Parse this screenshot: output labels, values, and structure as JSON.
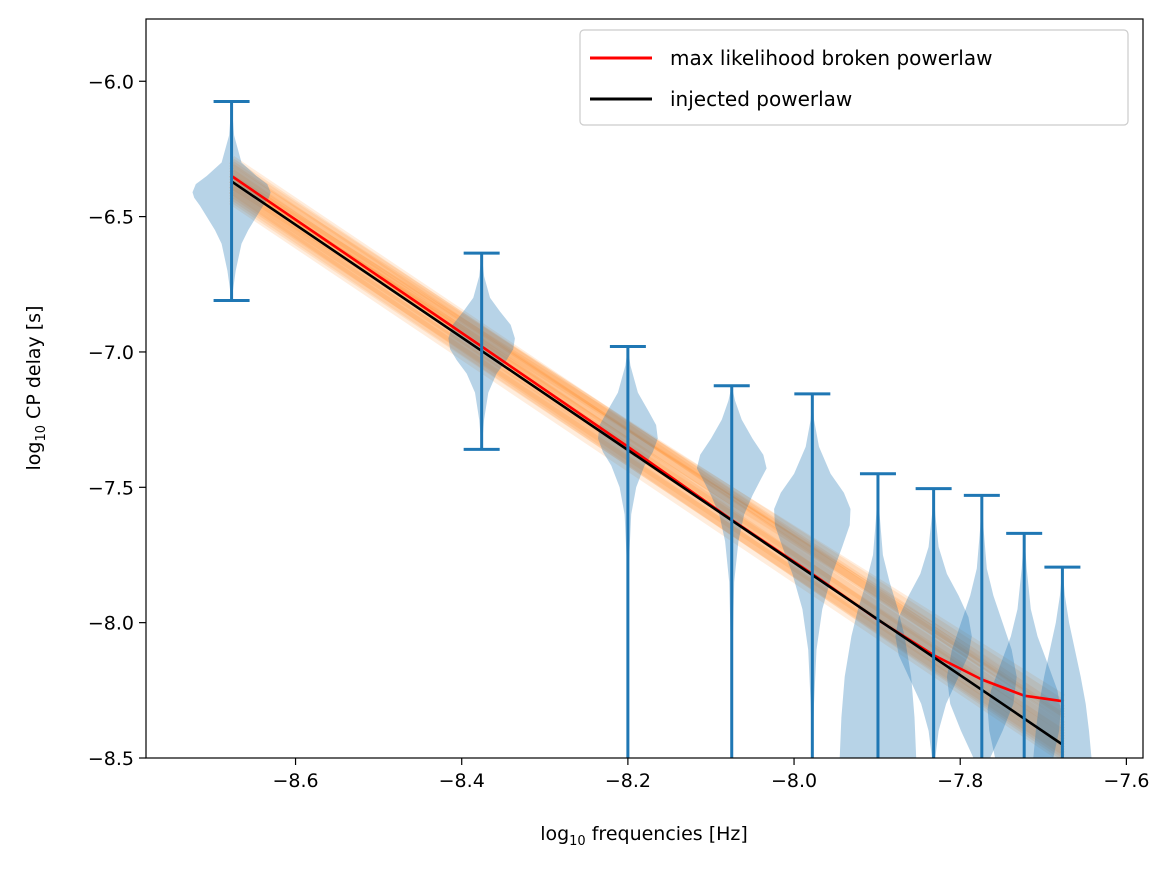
{
  "chart_data": {
    "type": "line",
    "xlabel_base": "log",
    "xlabel_sub": "10",
    "xlabel_rest": " frequencies [Hz]",
    "ylabel_base": "log",
    "ylabel_sub": "10",
    "ylabel_rest": " CP delay [s]",
    "xlim": [
      -8.78,
      -7.58
    ],
    "ylim": [
      -8.5,
      -5.77
    ],
    "x_ticks": [
      -8.6,
      -8.4,
      -8.2,
      -8.0,
      -7.8,
      -7.6
    ],
    "x_tick_labels": [
      "−8.6",
      "−8.4",
      "−8.2",
      "−8.0",
      "−7.8",
      "−7.6"
    ],
    "y_ticks": [
      -6.0,
      -6.5,
      -7.0,
      -7.5,
      -8.0,
      -8.5
    ],
    "y_tick_labels": [
      "−6.0",
      "−6.5",
      "−7.0",
      "−7.5",
      "−8.0",
      "−8.5"
    ],
    "legend_position": "top-right",
    "series": [
      {
        "name": "max likelihood broken powerlaw",
        "color": "#ff0000",
        "x": [
          -8.677,
          -8.376,
          -8.2,
          -8.075,
          -7.978,
          -7.899,
          -7.832,
          -7.774,
          -7.723,
          -7.677
        ],
        "y": [
          -6.35,
          -6.98,
          -7.35,
          -7.62,
          -7.82,
          -7.99,
          -8.12,
          -8.21,
          -8.27,
          -8.29
        ]
      },
      {
        "name": "injected powerlaw",
        "color": "#000000",
        "x": [
          -8.677,
          -7.677
        ],
        "y": [
          -6.37,
          -8.45
        ]
      }
    ],
    "violins": {
      "color": "#1f77b4",
      "items": [
        {
          "x": -8.677,
          "min": -6.81,
          "max": -6.075,
          "profile": [
            [
              -6.81,
              0.0
            ],
            [
              -6.7,
              0.005
            ],
            [
              -6.6,
              0.012
            ],
            [
              -6.55,
              0.02
            ],
            [
              -6.5,
              0.03
            ],
            [
              -6.46,
              0.038
            ],
            [
              -6.43,
              0.045
            ],
            [
              -6.41,
              0.047
            ],
            [
              -6.38,
              0.043
            ],
            [
              -6.35,
              0.03
            ],
            [
              -6.3,
              0.012
            ],
            [
              -6.2,
              0.003
            ],
            [
              -6.075,
              0.0
            ]
          ]
        },
        {
          "x": -8.376,
          "min": -7.36,
          "max": -6.635,
          "profile": [
            [
              -7.36,
              0.0
            ],
            [
              -7.25,
              0.003
            ],
            [
              -7.15,
              0.008
            ],
            [
              -7.08,
              0.018
            ],
            [
              -7.03,
              0.03
            ],
            [
              -6.99,
              0.038
            ],
            [
              -6.95,
              0.04
            ],
            [
              -6.9,
              0.035
            ],
            [
              -6.85,
              0.022
            ],
            [
              -6.8,
              0.01
            ],
            [
              -6.72,
              0.003
            ],
            [
              -6.635,
              0.0
            ]
          ]
        },
        {
          "x": -8.2,
          "min": -8.5,
          "max": -6.98,
          "profile": [
            [
              -8.5,
              0.0
            ],
            [
              -7.8,
              0.001
            ],
            [
              -7.6,
              0.004
            ],
            [
              -7.5,
              0.01
            ],
            [
              -7.42,
              0.02
            ],
            [
              -7.37,
              0.03
            ],
            [
              -7.32,
              0.036
            ],
            [
              -7.27,
              0.034
            ],
            [
              -7.22,
              0.025
            ],
            [
              -7.15,
              0.012
            ],
            [
              -7.05,
              0.003
            ],
            [
              -6.98,
              0.0
            ]
          ]
        },
        {
          "x": -8.075,
          "min": -8.5,
          "max": -7.125,
          "profile": [
            [
              -8.5,
              0.0
            ],
            [
              -8.1,
              0.001
            ],
            [
              -7.85,
              0.003
            ],
            [
              -7.7,
              0.008
            ],
            [
              -7.6,
              0.015
            ],
            [
              -7.53,
              0.025
            ],
            [
              -7.47,
              0.035
            ],
            [
              -7.43,
              0.042
            ],
            [
              -7.38,
              0.038
            ],
            [
              -7.32,
              0.025
            ],
            [
              -7.25,
              0.012
            ],
            [
              -7.18,
              0.004
            ],
            [
              -7.125,
              0.0
            ]
          ]
        },
        {
          "x": -7.978,
          "min": -8.5,
          "max": -7.155,
          "profile": [
            [
              -8.5,
              0.0
            ],
            [
              -8.3,
              0.002
            ],
            [
              -8.1,
              0.005
            ],
            [
              -7.95,
              0.012
            ],
            [
              -7.82,
              0.024
            ],
            [
              -7.72,
              0.036
            ],
            [
              -7.64,
              0.045
            ],
            [
              -7.58,
              0.046
            ],
            [
              -7.52,
              0.038
            ],
            [
              -7.45,
              0.022
            ],
            [
              -7.35,
              0.008
            ],
            [
              -7.25,
              0.002
            ],
            [
              -7.155,
              0.0
            ]
          ]
        },
        {
          "x": -7.899,
          "min": -8.5,
          "max": -7.45,
          "profile": [
            [
              -8.5,
              0.046
            ],
            [
              -8.35,
              0.044
            ],
            [
              -8.2,
              0.04
            ],
            [
              -8.05,
              0.032
            ],
            [
              -7.95,
              0.024
            ],
            [
              -7.85,
              0.014
            ],
            [
              -7.75,
              0.006
            ],
            [
              -7.6,
              0.002
            ],
            [
              -7.45,
              0.0
            ]
          ]
        },
        {
          "x": -7.832,
          "min": -8.5,
          "max": -7.505,
          "profile": [
            [
              -8.5,
              0.002
            ],
            [
              -8.4,
              0.006
            ],
            [
              -8.3,
              0.015
            ],
            [
              -8.2,
              0.03
            ],
            [
              -8.12,
              0.042
            ],
            [
              -8.05,
              0.046
            ],
            [
              -7.98,
              0.042
            ],
            [
              -7.9,
              0.03
            ],
            [
              -7.82,
              0.016
            ],
            [
              -7.72,
              0.006
            ],
            [
              -7.6,
              0.002
            ],
            [
              -7.505,
              0.0
            ]
          ]
        },
        {
          "x": -7.774,
          "min": -8.5,
          "max": -7.53,
          "profile": [
            [
              -8.5,
              0.01
            ],
            [
              -8.4,
              0.025
            ],
            [
              -8.3,
              0.038
            ],
            [
              -8.2,
              0.042
            ],
            [
              -8.1,
              0.036
            ],
            [
              -8.0,
              0.025
            ],
            [
              -7.9,
              0.014
            ],
            [
              -7.8,
              0.006
            ],
            [
              -7.65,
              0.002
            ],
            [
              -7.53,
              0.0
            ]
          ]
        },
        {
          "x": -7.723,
          "min": -8.5,
          "max": -7.67,
          "profile": [
            [
              -8.5,
              0.035
            ],
            [
              -8.4,
              0.042
            ],
            [
              -8.32,
              0.044
            ],
            [
              -8.25,
              0.04
            ],
            [
              -8.15,
              0.028
            ],
            [
              -8.05,
              0.016
            ],
            [
              -7.95,
              0.008
            ],
            [
              -7.8,
              0.003
            ],
            [
              -7.67,
              0.0
            ]
          ]
        },
        {
          "x": -7.677,
          "min": -8.5,
          "max": -7.795,
          "profile": [
            [
              -8.5,
              0.035
            ],
            [
              -8.4,
              0.032
            ],
            [
              -8.3,
              0.028
            ],
            [
              -8.2,
              0.022
            ],
            [
              -8.1,
              0.015
            ],
            [
              -8.0,
              0.008
            ],
            [
              -7.9,
              0.003
            ],
            [
              -7.795,
              0.0
            ]
          ]
        }
      ]
    },
    "posterior_band": {
      "color": "#ff7f0e",
      "x_start": -8.677,
      "x_end": -7.677,
      "lines": [
        [
          -6.3,
          -8.36
        ],
        [
          -6.32,
          -8.38
        ],
        [
          -6.34,
          -8.4
        ],
        [
          -6.36,
          -8.42
        ],
        [
          -6.38,
          -8.44
        ],
        [
          -6.4,
          -8.46
        ],
        [
          -6.42,
          -8.48
        ],
        [
          -6.44,
          -8.5
        ],
        [
          -6.33,
          -8.3
        ],
        [
          -6.35,
          -8.34
        ],
        [
          -6.37,
          -8.39
        ],
        [
          -6.39,
          -8.41
        ],
        [
          -6.31,
          -8.33
        ],
        [
          -6.41,
          -8.45
        ],
        [
          -6.43,
          -8.47
        ],
        [
          -6.29,
          -8.35
        ],
        [
          -6.36,
          -8.28
        ],
        [
          -6.38,
          -8.32
        ],
        [
          -6.34,
          -8.43
        ],
        [
          -6.4,
          -8.49
        ]
      ]
    }
  }
}
